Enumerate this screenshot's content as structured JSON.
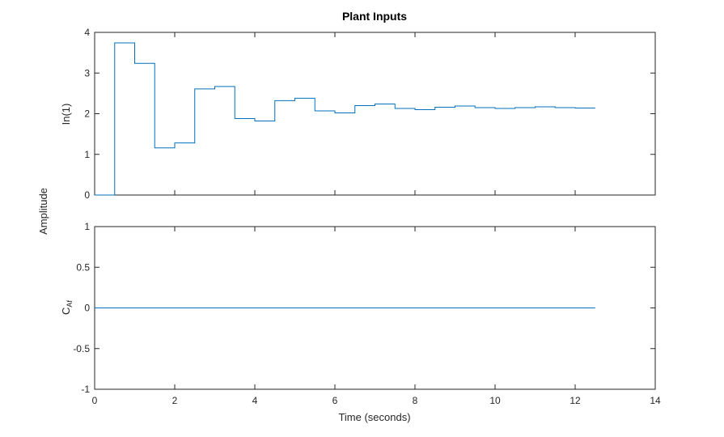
{
  "chart_data": {
    "type": "line",
    "title": "Plant Inputs",
    "xlabel": "Time (seconds)",
    "ylabel": "Amplitude",
    "xlim": [
      0,
      14
    ],
    "xticks": [
      "0",
      "2",
      "4",
      "6",
      "8",
      "10",
      "12",
      "14"
    ],
    "line_color": "#0072BD",
    "axes_color": "#262626",
    "grid": false,
    "subplots": [
      {
        "ylabel_main": "In(1)",
        "ylabel_sub": "",
        "ylim": [
          0,
          4
        ],
        "yticks": [
          "0",
          "1",
          "2",
          "3",
          "4"
        ],
        "series": [
          {
            "step": "post",
            "x": [
              0,
              0.5,
              1,
              1.5,
              2,
              2.5,
              3,
              3.5,
              4,
              4.5,
              5,
              5.5,
              6,
              6.5,
              7,
              7.5,
              8,
              8.5,
              9,
              9.5,
              10,
              10.5,
              11,
              11.5,
              12,
              12.5
            ],
            "y": [
              0,
              3.74,
              3.24,
              1.16,
              1.28,
              2.61,
              2.67,
              1.88,
              1.82,
              2.32,
              2.38,
              2.07,
              2.02,
              2.2,
              2.24,
              2.13,
              2.1,
              2.16,
              2.19,
              2.15,
              2.13,
              2.15,
              2.17,
              2.15,
              2.14,
              2.14
            ]
          }
        ]
      },
      {
        "ylabel_main": "C",
        "ylabel_sub": "Af",
        "ylim": [
          -1,
          1
        ],
        "yticks": [
          "-1",
          "-0.5",
          "0",
          "0.5",
          "1"
        ],
        "series": [
          {
            "step": "post",
            "x": [
              0,
              12.5
            ],
            "y": [
              0,
              0
            ]
          }
        ]
      }
    ]
  }
}
